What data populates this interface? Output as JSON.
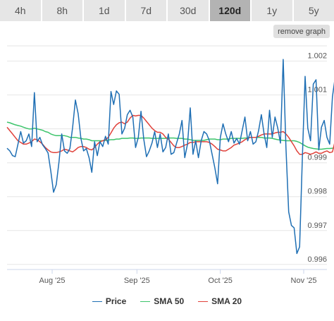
{
  "range_tabs": [
    {
      "label": "4h",
      "active": false
    },
    {
      "label": "8h",
      "active": false
    },
    {
      "label": "1d",
      "active": false
    },
    {
      "label": "7d",
      "active": false
    },
    {
      "label": "30d",
      "active": false
    },
    {
      "label": "120d",
      "active": true
    },
    {
      "label": "1y",
      "active": false
    },
    {
      "label": "5y",
      "active": false
    }
  ],
  "remove_graph_label": "remove graph",
  "chart_data": {
    "type": "line",
    "x_tick_labels": [
      "Aug '25",
      "Sep '25",
      "Oct '25",
      "Nov '25"
    ],
    "x_tick_positions": [
      16.5,
      47.5,
      78,
      108.5
    ],
    "x_range": [
      0,
      117
    ],
    "y_ticks": [
      0.996,
      0.997,
      0.998,
      0.999,
      1.0,
      1.001,
      1.002
    ],
    "y_tick_labels": [
      "0.996",
      "0.997",
      "0.998",
      "0.999",
      "",
      "1.001",
      "1.002"
    ],
    "ylim": [
      0.99585,
      1.00245
    ],
    "grid": true,
    "legend": "bottom-center",
    "series": [
      {
        "name": "Price",
        "color": "#1f6fb4",
        "values": [
          0.99943,
          0.99935,
          0.99921,
          0.99918,
          0.99955,
          0.99992,
          0.99958,
          0.99965,
          0.99985,
          0.99948,
          1.00107,
          0.99962,
          0.99975,
          0.99953,
          0.99942,
          0.99929,
          0.99875,
          0.99813,
          0.99835,
          0.99902,
          0.99985,
          0.99935,
          0.99928,
          0.99942,
          1.00005,
          1.00085,
          1.00045,
          0.99972,
          0.99935,
          0.99942,
          0.99915,
          0.99872,
          0.99962,
          0.99921,
          0.99962,
          0.99948,
          0.99978,
          0.99955,
          1.0011,
          1.00072,
          1.00112,
          1.00102,
          0.99985,
          1.00002,
          1.00042,
          1.00055,
          1.00035,
          0.99945,
          0.99975,
          1.00052,
          0.9997,
          0.99918,
          0.99935,
          0.99958,
          0.99992,
          0.99945,
          0.99985,
          0.99932,
          0.99945,
          0.99985,
          0.99925,
          0.9993,
          0.99958,
          0.99985,
          1.00025,
          0.99915,
          0.99955,
          1.00062,
          0.99925,
          0.99965,
          0.99915,
          0.99965,
          0.99992,
          0.99985,
          0.99965,
          0.99925,
          0.99885,
          0.99838,
          0.99975,
          1.00015,
          0.99985,
          0.99962,
          0.99992,
          0.99958,
          0.99972,
          0.99955,
          0.99995,
          1.00035,
          0.99965,
          0.99992,
          0.99955,
          0.99962,
          0.99995,
          1.00042,
          0.99985,
          0.99945,
          1.00055,
          0.99975,
          1.00035,
          1.00002,
          0.99958,
          1.00205,
          0.99945,
          0.99755,
          0.99715,
          0.99708,
          0.99632,
          0.99652,
          0.99915,
          1.00155,
          1.00002,
          0.99965,
          1.00132,
          1.00145,
          0.99938,
          1.00005,
          1.00025,
          0.99975,
          0.99955,
          1.00095,
          1.00152
        ]
      },
      {
        "name": "SMA 50",
        "color": "#3cc46b",
        "values": [
          1.0002,
          1.00018,
          1.00015,
          1.00012,
          1.0001,
          1.00008,
          1.00005,
          1.00002,
          1.0,
          1.0,
          1.00002,
          1.0,
          0.99998,
          0.99996,
          0.99992,
          0.9999,
          0.99985,
          0.99982,
          0.9998,
          0.9998,
          0.9998,
          0.9998,
          0.99978,
          0.99975,
          0.99975,
          0.99975,
          0.99973,
          0.99972,
          0.9997,
          0.9997,
          0.99968,
          0.99965,
          0.99965,
          0.99965,
          0.99965,
          0.99965,
          0.99966,
          0.99967,
          0.99968,
          0.99968,
          0.9997,
          0.9997,
          0.99972,
          0.99972,
          0.99972,
          0.99973,
          0.99973,
          0.99972,
          0.99972,
          0.99973,
          0.99973,
          0.99973,
          0.99973,
          0.99972,
          0.99972,
          0.99972,
          0.99972,
          0.99972,
          0.99972,
          0.99973,
          0.99973,
          0.99973,
          0.99972,
          0.99972,
          0.99972,
          0.9997,
          0.9997,
          0.99968,
          0.99966,
          0.99966,
          0.99966,
          0.99966,
          0.99966,
          0.99968,
          0.9997,
          0.9997,
          0.9997,
          0.99968,
          0.99968,
          0.9997,
          0.9997,
          0.9997,
          0.99972,
          0.99972,
          0.99972,
          0.99972,
          0.99972,
          0.99973,
          0.99973,
          0.99975,
          0.99975,
          0.99975,
          0.99975,
          0.99975,
          0.99973,
          0.99973,
          0.99973,
          0.99972,
          0.9997,
          0.99968,
          0.99967,
          0.99966,
          0.99965,
          0.99965,
          0.99965,
          0.99965,
          0.99963,
          0.9996,
          0.99955,
          0.9995,
          0.99946,
          0.99944,
          0.99942,
          0.99941,
          0.9994,
          0.9994,
          0.99941,
          0.99942,
          0.99942,
          0.99943,
          0.99944
        ]
      },
      {
        "name": "SMA 20",
        "color": "#e0413a",
        "values": [
          1.00005,
          0.99995,
          0.99985,
          0.99975,
          0.99965,
          0.9996,
          0.99955,
          0.99955,
          0.99958,
          0.99962,
          0.9997,
          0.99968,
          0.99962,
          0.99955,
          0.99945,
          0.99938,
          0.99932,
          0.9993,
          0.9993,
          0.99932,
          0.99935,
          0.9994,
          0.99938,
          0.99935,
          0.99932,
          0.99938,
          0.99945,
          0.99948,
          0.99948,
          0.99945,
          0.9994,
          0.99938,
          0.99945,
          0.99955,
          0.99962,
          0.99965,
          0.99968,
          0.99975,
          0.99988,
          1.00002,
          1.00012,
          1.00018,
          1.0002,
          1.00015,
          1.0002,
          1.00032,
          1.0004,
          1.00038,
          1.0004,
          1.0004,
          1.00032,
          1.00022,
          1.00012,
          1.00002,
          0.99995,
          0.9999,
          0.9999,
          0.99985,
          0.99975,
          0.9997,
          0.9996,
          0.9995,
          0.99945,
          0.99945,
          0.99948,
          0.99952,
          0.99955,
          0.9996,
          0.9996,
          0.99962,
          0.99962,
          0.99962,
          0.99962,
          0.99962,
          0.9996,
          0.99955,
          0.99948,
          0.9994,
          0.99938,
          0.99935,
          0.99935,
          0.9994,
          0.99945,
          0.99952,
          0.99955,
          0.99958,
          0.99962,
          0.99968,
          0.99972,
          0.99975,
          0.99975,
          0.99975,
          0.99978,
          0.99982,
          0.99985,
          0.99985,
          0.99985,
          0.99985,
          0.99988,
          0.9999,
          0.9999,
          0.99992,
          0.99985,
          0.99975,
          0.99962,
          0.9995,
          0.99935,
          0.99925,
          0.99925,
          0.9993,
          0.99928,
          0.99925,
          0.99928,
          0.99932,
          0.99928,
          0.99928,
          0.99932,
          0.99935,
          0.9993,
          0.99932,
          0.99965
        ]
      }
    ]
  }
}
